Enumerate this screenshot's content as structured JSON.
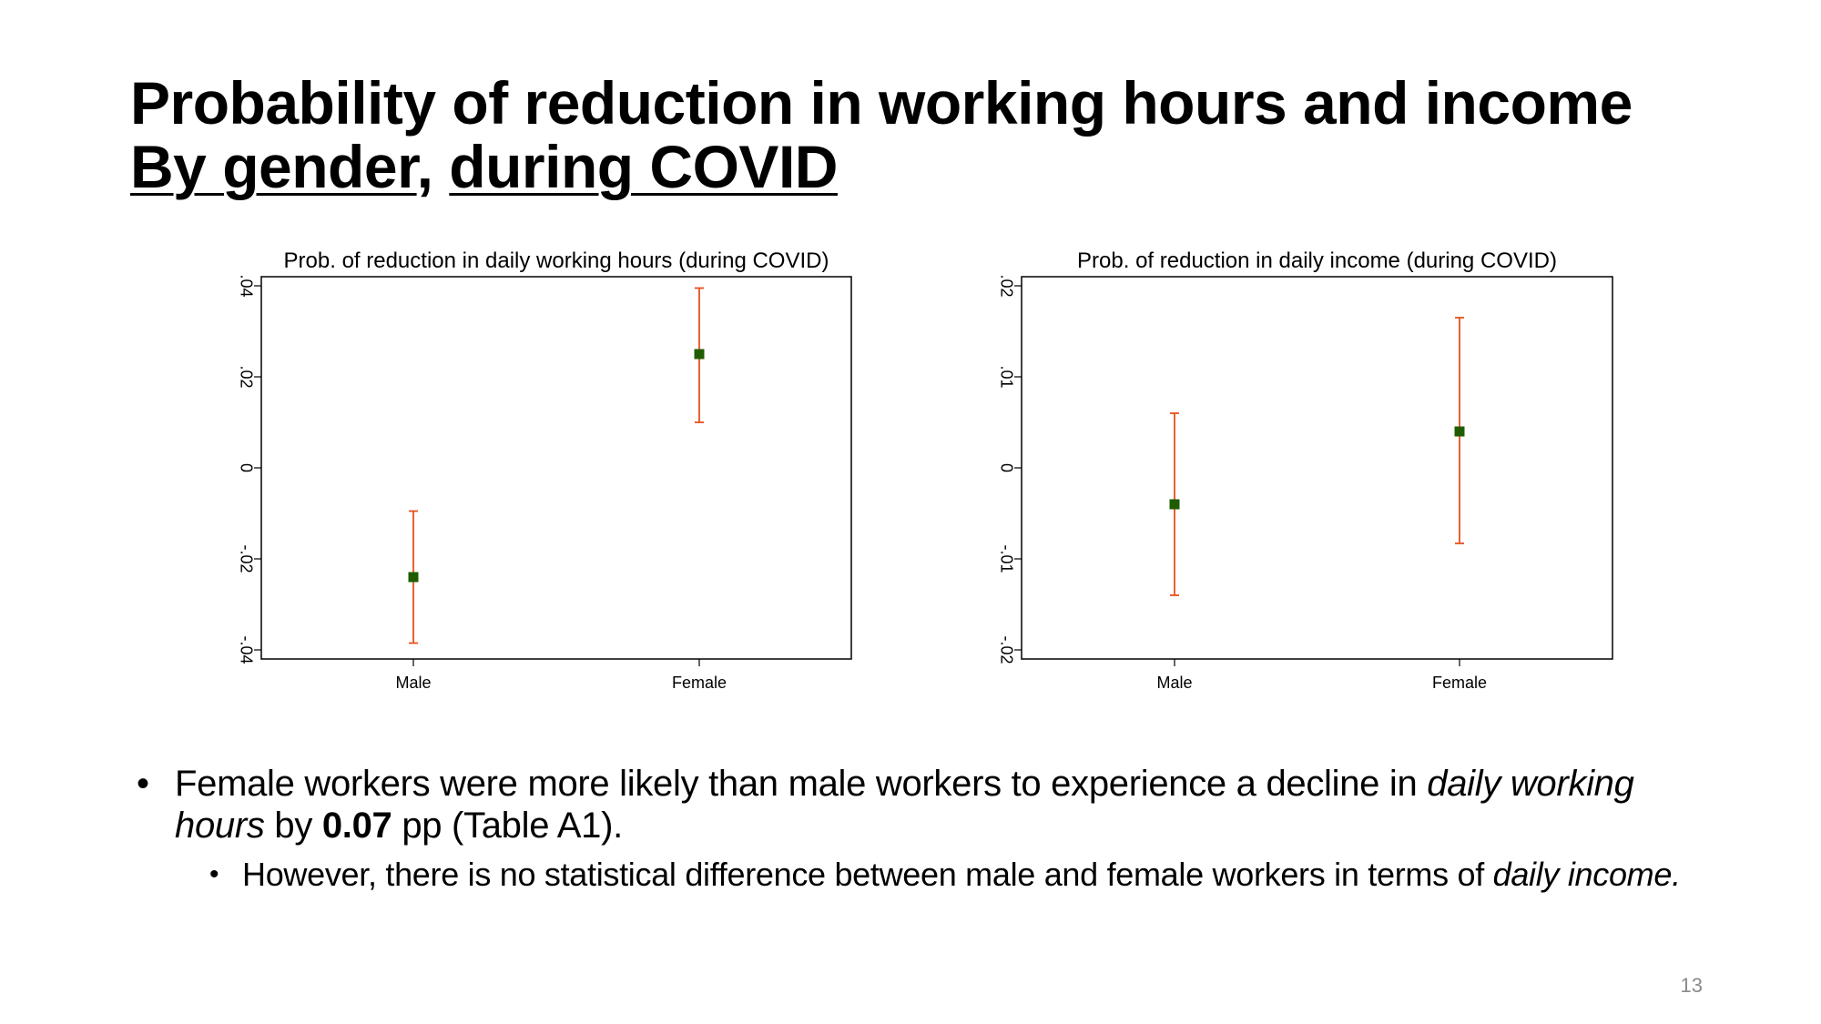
{
  "slide": {
    "title_line1": "Probability of reduction in working hours and income",
    "title_by_gender": "By gender",
    "title_comma": ", ",
    "title_during": "during COVID",
    "page_number": "13"
  },
  "bullets": {
    "b1_part1": "Female workers were more likely than male workers to experience a decline in ",
    "b1_italic": "daily working hours",
    "b1_part2": " by ",
    "b1_bold": "0.07",
    "b1_part3": " pp (Table A1).",
    "b2_part1": "However, there is no statistical difference between male and female workers in terms of ",
    "b2_italic": "daily income."
  },
  "colors": {
    "point": "#1f5c00",
    "errorbar": "#e8501c",
    "frame": "#000000"
  },
  "chart_data": [
    {
      "type": "scatter",
      "title": "Prob. of reduction in daily working hours (during COVID)",
      "categories": [
        "Male",
        "Female"
      ],
      "values": [
        -0.024,
        0.025
      ],
      "ci_low": [
        -0.0385,
        0.01
      ],
      "ci_high": [
        -0.0095,
        0.0395
      ],
      "ylim": [
        -0.04,
        0.04
      ],
      "yticks": [
        -0.04,
        -0.02,
        0,
        0.02,
        0.04
      ],
      "ytick_labels": [
        "-.04",
        "-.02",
        "0",
        ".02",
        ".04"
      ],
      "xlabel": "",
      "ylabel": "",
      "grid": false
    },
    {
      "type": "scatter",
      "title": "Prob. of reduction in daily income (during COVID)",
      "categories": [
        "Male",
        "Female"
      ],
      "values": [
        -0.004,
        0.004
      ],
      "ci_low": [
        -0.014,
        -0.0083
      ],
      "ci_high": [
        0.006,
        0.0165
      ],
      "ylim": [
        -0.02,
        0.02
      ],
      "yticks": [
        -0.02,
        -0.01,
        0,
        0.01,
        0.02
      ],
      "ytick_labels": [
        "-.02",
        "-.01",
        "0",
        ".01",
        ".02"
      ],
      "xlabel": "",
      "ylabel": "",
      "grid": false
    }
  ]
}
